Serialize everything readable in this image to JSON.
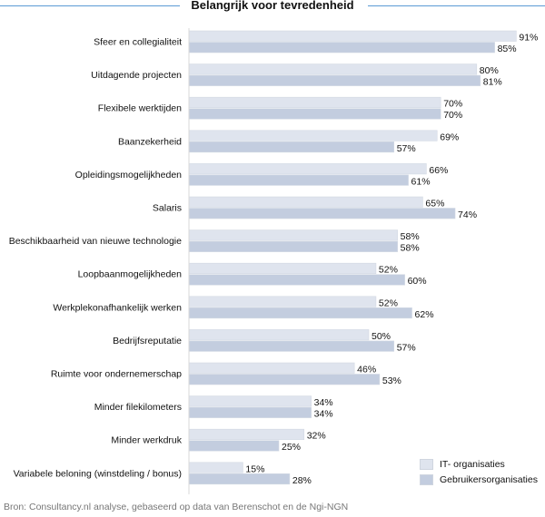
{
  "chart_data": {
    "type": "bar",
    "orientation": "horizontal",
    "title": "Belangrijk voor tevredenheid",
    "categories": [
      "Sfeer en collegialiteit",
      "Uitdagende projecten",
      "Flexibele werktijden",
      "Baanzekerheid",
      "Opleidingsmogelijkheden",
      "Salaris",
      "Beschikbaarheid van nieuwe technologie",
      "Loopbaanmogelijkheden",
      "Werkplekonafhankelijk werken",
      "Bedrijfsreputatie",
      "Ruimte voor ondernemerschap",
      "Minder filekilometers",
      "Minder werkdruk",
      "Variabele beloning (winstdeling / bonus)"
    ],
    "series": [
      {
        "name": "IT- organisaties",
        "color": "#dfe4ee",
        "values": [
          91,
          80,
          70,
          69,
          66,
          65,
          58,
          52,
          52,
          50,
          46,
          34,
          32,
          15
        ]
      },
      {
        "name": "Gebruikersorganisaties",
        "color": "#c3cddf",
        "values": [
          85,
          81,
          70,
          57,
          61,
          74,
          58,
          60,
          62,
          57,
          53,
          34,
          25,
          28
        ]
      }
    ],
    "value_suffix": "%",
    "xlim": [
      0,
      100
    ],
    "grid": false,
    "legend_position": "bottom-right"
  },
  "footer": "Bron: Consultancy.nl analyse, gebaseerd op data van Berenschot en de Ngi-NGN"
}
